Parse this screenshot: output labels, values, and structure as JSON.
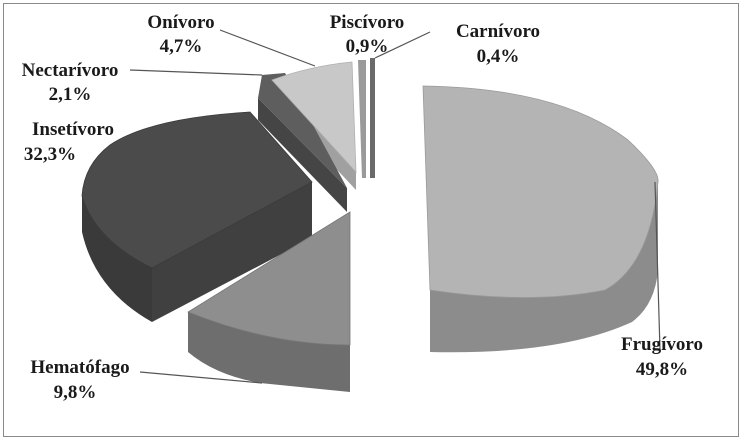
{
  "chart_data": {
    "type": "pie",
    "style": "3d-exploded",
    "title": "",
    "legend": "none",
    "slices": [
      {
        "name": "Frugívoro",
        "value": 49.8,
        "label_value": "49,8%",
        "color": "#b4b4b4",
        "side_color": "#8c8c8c"
      },
      {
        "name": "Hematófago",
        "value": 9.8,
        "label_value": "9,8%",
        "color": "#8e8e8e",
        "side_color": "#6e6e6e"
      },
      {
        "name": "Insetívoro",
        "value": 32.3,
        "label_value": "32,3%",
        "color": "#4b4b4b",
        "side_color": "#3a3a3a"
      },
      {
        "name": "Nectarívoro",
        "value": 2.1,
        "label_value": "2,1%",
        "color": "#5e5e5e",
        "side_color": "#454545"
      },
      {
        "name": "Onívoro",
        "value": 4.7,
        "label_value": "4,7%",
        "color": "#c8c8c8",
        "side_color": "#a0a0a0"
      },
      {
        "name": "Piscívoro",
        "value": 0.9,
        "label_value": "0,9%",
        "color": "#9a9a9a",
        "side_color": "#7a7a7a"
      },
      {
        "name": "Carnívoro",
        "value": 0.4,
        "label_value": "0,4%",
        "color": "#6a6a6a",
        "side_color": "#505050"
      }
    ]
  }
}
